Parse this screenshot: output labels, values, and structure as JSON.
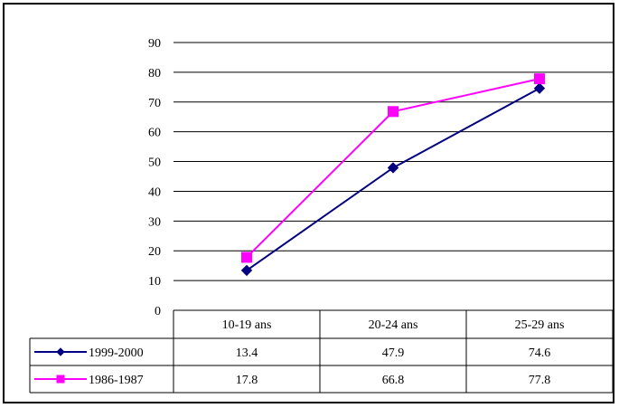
{
  "chart_data": {
    "type": "line",
    "categories": [
      "10-19 ans",
      "20-24 ans",
      "25-29 ans"
    ],
    "series": [
      {
        "name": "1999-2000",
        "values": [
          13.4,
          47.9,
          74.6
        ],
        "color": "#000080",
        "marker": "diamond"
      },
      {
        "name": "1986-1987",
        "values": [
          17.8,
          66.8,
          77.8
        ],
        "color": "#FF00FF",
        "marker": "square"
      }
    ],
    "ylim": [
      0,
      90
    ],
    "yticks": [
      "0",
      "10",
      "20",
      "30",
      "40",
      "50",
      "60",
      "70",
      "80",
      "90"
    ],
    "grid": true,
    "legend": "data-table-left",
    "title": "",
    "xlabel": "",
    "ylabel": ""
  }
}
